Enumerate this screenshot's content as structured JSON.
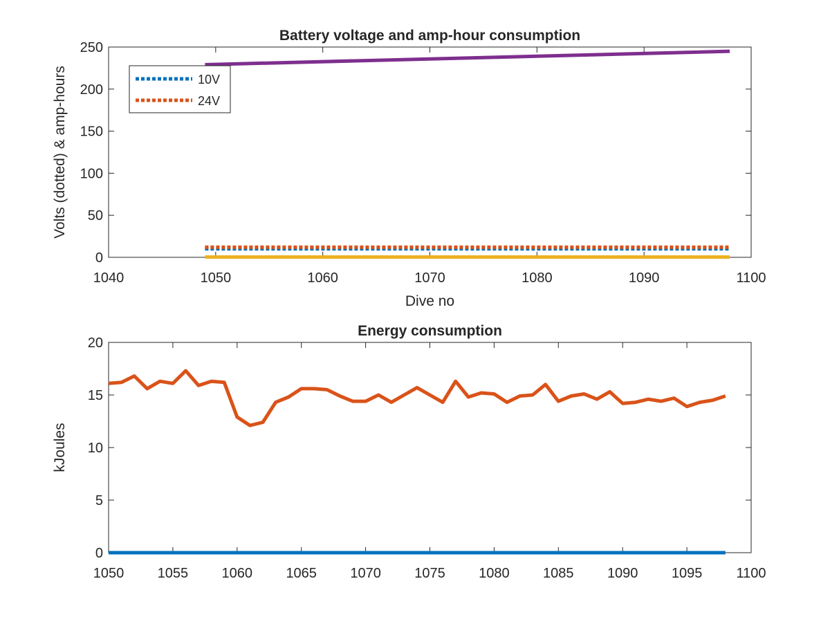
{
  "chart_data": [
    {
      "type": "line",
      "title": "Battery voltage and amp-hour consumption",
      "xlabel": "Dive no",
      "ylabel": "Volts (dotted) & amp-hours",
      "xlim": [
        1040,
        1100
      ],
      "ylim": [
        0,
        250
      ],
      "xticks": [
        1040,
        1050,
        1060,
        1070,
        1080,
        1090,
        1100
      ],
      "yticks": [
        0,
        50,
        100,
        150,
        200,
        250
      ],
      "legend": {
        "placement": "top-left",
        "entries": [
          "10V",
          "24V"
        ]
      },
      "series": [
        {
          "name": "10V",
          "style": "dotted",
          "color": "#0072BD",
          "x": [
            1049,
            1098
          ],
          "y": [
            10,
            10
          ]
        },
        {
          "name": "24V",
          "style": "dotted",
          "color": "#D95319",
          "x": [
            1049,
            1098
          ],
          "y": [
            12,
            12
          ]
        },
        {
          "style": "solid",
          "color": "#EDB120",
          "x": [
            1049,
            1098
          ],
          "y": [
            0.3,
            0.3
          ]
        },
        {
          "style": "solid",
          "color": "#7E2F8E",
          "x": [
            1049,
            1098
          ],
          "y": [
            229,
            245
          ]
        }
      ]
    },
    {
      "type": "line",
      "title": "Energy consumption",
      "xlabel": "",
      "ylabel": "kJoules",
      "xlim": [
        1050,
        1100
      ],
      "ylim": [
        0,
        20
      ],
      "xticks": [
        1050,
        1055,
        1060,
        1065,
        1070,
        1075,
        1080,
        1085,
        1090,
        1095,
        1100
      ],
      "yticks": [
        0,
        5,
        10,
        15,
        20
      ],
      "series": [
        {
          "style": "solid",
          "color": "#D95319",
          "x": [
            1050,
            1051,
            1052,
            1053,
            1054,
            1055,
            1056,
            1057,
            1058,
            1059,
            1060,
            1061,
            1062,
            1063,
            1064,
            1065,
            1066,
            1067,
            1068,
            1069,
            1070,
            1071,
            1072,
            1073,
            1074,
            1075,
            1076,
            1077,
            1078,
            1079,
            1080,
            1081,
            1082,
            1083,
            1084,
            1085,
            1086,
            1087,
            1088,
            1089,
            1090,
            1091,
            1092,
            1093,
            1094,
            1095,
            1096,
            1097,
            1098
          ],
          "y": [
            16.1,
            16.2,
            16.8,
            15.6,
            16.3,
            16.1,
            17.3,
            15.9,
            16.3,
            16.2,
            12.9,
            12.1,
            12.4,
            14.3,
            14.8,
            15.6,
            15.6,
            15.5,
            14.9,
            14.4,
            14.4,
            15.0,
            14.3,
            15.0,
            15.7,
            15.0,
            14.3,
            16.3,
            14.8,
            15.2,
            15.1,
            14.3,
            14.9,
            15.0,
            16.0,
            14.4,
            14.9,
            15.1,
            14.6,
            15.3,
            14.2,
            14.3,
            14.6,
            14.4,
            14.7,
            13.9,
            14.3,
            14.5,
            14.9
          ]
        },
        {
          "style": "solid",
          "color": "#0072BD",
          "x": [
            1050,
            1098
          ],
          "y": [
            0,
            0
          ]
        }
      ]
    }
  ]
}
